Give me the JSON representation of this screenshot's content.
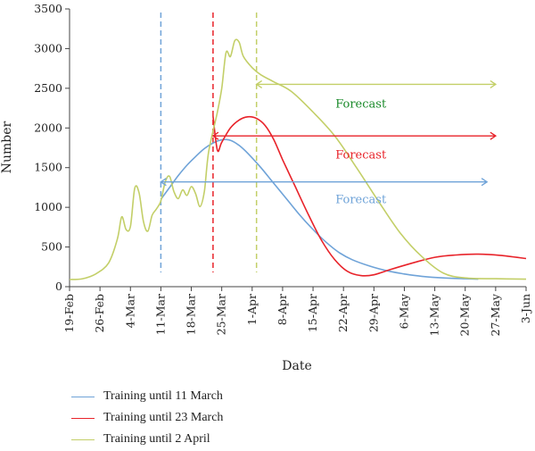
{
  "chart_data": {
    "type": "line",
    "xlabel": "Date",
    "ylabel": "Number",
    "ylim": [
      0,
      3500
    ],
    "yticks": [
      0,
      500,
      1000,
      1500,
      2000,
      2500,
      3000,
      3500
    ],
    "xlim": [
      "2020-02-19",
      "2020-06-03"
    ],
    "xticks": [
      "19-Feb",
      "26-Feb",
      "4-Mar",
      "11-Mar",
      "18-Mar",
      "25-Mar",
      "1-Apr",
      "8-Apr",
      "15-Apr",
      "22-Apr",
      "29-Apr",
      "6-May",
      "13-May",
      "20-May",
      "27-May",
      "3-Jun"
    ],
    "grid": false,
    "legend_position": "bottom",
    "series": [
      {
        "name": "Training until 11 March",
        "color": "#6fa3d8",
        "training_end": "2020-03-11",
        "points": [
          [
            "2020-03-11",
            1100
          ],
          [
            "2020-03-13",
            1250
          ],
          [
            "2020-03-15",
            1400
          ],
          [
            "2020-03-17",
            1530
          ],
          [
            "2020-03-19",
            1640
          ],
          [
            "2020-03-21",
            1740
          ],
          [
            "2020-03-23",
            1810
          ],
          [
            "2020-03-25",
            1850
          ],
          [
            "2020-03-27",
            1845
          ],
          [
            "2020-03-29",
            1780
          ],
          [
            "2020-03-31",
            1680
          ],
          [
            "2020-04-03",
            1500
          ],
          [
            "2020-04-06",
            1300
          ],
          [
            "2020-04-09",
            1100
          ],
          [
            "2020-04-12",
            900
          ],
          [
            "2020-04-15",
            720
          ],
          [
            "2020-04-18",
            560
          ],
          [
            "2020-04-21",
            430
          ],
          [
            "2020-04-24",
            340
          ],
          [
            "2020-04-28",
            260
          ],
          [
            "2020-05-02",
            200
          ],
          [
            "2020-05-06",
            160
          ],
          [
            "2020-05-10",
            130
          ],
          [
            "2020-05-15",
            110
          ],
          [
            "2020-05-20",
            100
          ],
          [
            "2020-05-23",
            95
          ]
        ]
      },
      {
        "name": "Training until 23 March",
        "color": "#e8232a",
        "training_end": "2020-03-23",
        "points": [
          [
            "2020-03-23",
            2150
          ],
          [
            "2020-03-24",
            1720
          ],
          [
            "2020-03-25",
            1820
          ],
          [
            "2020-03-27",
            2000
          ],
          [
            "2020-03-29",
            2100
          ],
          [
            "2020-03-31",
            2140
          ],
          [
            "2020-04-02",
            2120
          ],
          [
            "2020-04-04",
            2030
          ],
          [
            "2020-04-06",
            1850
          ],
          [
            "2020-04-08",
            1600
          ],
          [
            "2020-04-11",
            1250
          ],
          [
            "2020-04-14",
            900
          ],
          [
            "2020-04-17",
            580
          ],
          [
            "2020-04-20",
            340
          ],
          [
            "2020-04-23",
            190
          ],
          [
            "2020-04-26",
            140
          ],
          [
            "2020-04-29",
            150
          ],
          [
            "2020-05-03",
            220
          ],
          [
            "2020-05-08",
            300
          ],
          [
            "2020-05-13",
            370
          ],
          [
            "2020-05-18",
            400
          ],
          [
            "2020-05-23",
            410
          ],
          [
            "2020-05-28",
            395
          ],
          [
            "2020-06-03",
            355
          ]
        ]
      },
      {
        "name": "Training until 2 April",
        "color": "#c3cf68",
        "training_end": "2020-04-02",
        "points": [
          [
            "2020-02-19",
            90
          ],
          [
            "2020-02-22",
            100
          ],
          [
            "2020-02-25",
            160
          ],
          [
            "2020-02-28",
            300
          ],
          [
            "2020-03-01",
            600
          ],
          [
            "2020-03-02",
            880
          ],
          [
            "2020-03-03",
            720
          ],
          [
            "2020-03-04",
            760
          ],
          [
            "2020-03-05",
            1240
          ],
          [
            "2020-03-06",
            1180
          ],
          [
            "2020-03-07",
            820
          ],
          [
            "2020-03-08",
            700
          ],
          [
            "2020-03-09",
            900
          ],
          [
            "2020-03-10",
            980
          ],
          [
            "2020-03-11",
            1080
          ],
          [
            "2020-03-12",
            1320
          ],
          [
            "2020-03-13",
            1390
          ],
          [
            "2020-03-14",
            1200
          ],
          [
            "2020-03-15",
            1110
          ],
          [
            "2020-03-16",
            1220
          ],
          [
            "2020-03-17",
            1150
          ],
          [
            "2020-03-18",
            1260
          ],
          [
            "2020-03-19",
            1170
          ],
          [
            "2020-03-20",
            1010
          ],
          [
            "2020-03-21",
            1200
          ],
          [
            "2020-03-22",
            1700
          ],
          [
            "2020-03-24",
            2200
          ],
          [
            "2020-03-25",
            2500
          ],
          [
            "2020-03-26",
            2950
          ],
          [
            "2020-03-27",
            2900
          ],
          [
            "2020-03-28",
            3100
          ],
          [
            "2020-03-29",
            3080
          ],
          [
            "2020-03-30",
            2900
          ],
          [
            "2020-04-01",
            2760
          ],
          [
            "2020-04-03",
            2670
          ],
          [
            "2020-04-06",
            2580
          ],
          [
            "2020-04-10",
            2460
          ],
          [
            "2020-04-15",
            2200
          ],
          [
            "2020-04-20",
            1900
          ],
          [
            "2020-04-25",
            1500
          ],
          [
            "2020-04-30",
            1080
          ],
          [
            "2020-05-05",
            680
          ],
          [
            "2020-05-10",
            380
          ],
          [
            "2020-05-15",
            170
          ],
          [
            "2020-05-20",
            110
          ],
          [
            "2020-05-27",
            100
          ],
          [
            "2020-06-03",
            95
          ]
        ]
      }
    ],
    "annotations": [
      {
        "text": "Forecast",
        "color": "#1a8a2a",
        "arrow_start": "2020-04-02",
        "arrow_end": "2020-05-27",
        "arrow_y": 2550,
        "text_date": "2020-04-26",
        "text_y": 2300
      },
      {
        "text": "Forecast",
        "color": "#e8232a",
        "arrow_start": "2020-03-23",
        "arrow_end": "2020-05-27",
        "arrow_y": 1900,
        "text_date": "2020-04-26",
        "text_y": 1660
      },
      {
        "text": "Forecast",
        "color": "#6fa3d8",
        "arrow_start": "2020-03-11",
        "arrow_end": "2020-05-25",
        "arrow_y": 1320,
        "text_date": "2020-04-26",
        "text_y": 1100
      }
    ]
  }
}
